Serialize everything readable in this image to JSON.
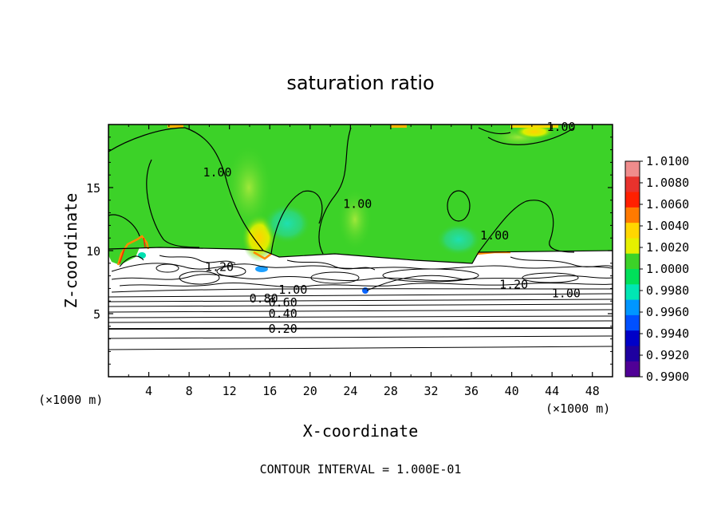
{
  "chart_data": {
    "type": "heatmap",
    "title": "saturation ratio",
    "xlabel": "X-coordinate",
    "ylabel": "Z-coordinate",
    "x_unit_label_left": "(×1000 m)",
    "x_unit_label_right": "(×1000 m)",
    "footer": "CONTOUR INTERVAL = 1.000E-01",
    "xlim": [
      0,
      50
    ],
    "ylim": [
      0,
      20
    ],
    "x_ticks": [
      4,
      8,
      12,
      16,
      20,
      24,
      28,
      32,
      36,
      40,
      44,
      48
    ],
    "x_tick_labels": [
      "4",
      "8",
      "12",
      "16",
      "20",
      "24",
      "28",
      "32",
      "36",
      "40",
      "44",
      "48"
    ],
    "y_ticks": [
      5,
      10,
      15
    ],
    "y_tick_labels": [
      "5",
      "10",
      "15"
    ],
    "colorbar": {
      "min": 0.99,
      "max": 1.01,
      "labels": [
        "1.0100",
        "1.0080",
        "1.0060",
        "1.0040",
        "1.0020",
        "1.0000",
        "0.9980",
        "0.9960",
        "0.9940",
        "0.9920",
        "0.9900"
      ],
      "colors": [
        "#f08c8c",
        "#e8322d",
        "#ff2000",
        "#ff7a00",
        "#ffd700",
        "#e6f000",
        "#3cd228",
        "#00e05a",
        "#00e6b4",
        "#0096ff",
        "#0050ff",
        "#0000c8",
        "#1e00a0",
        "#500096"
      ]
    },
    "contour_labels": [
      {
        "text": "1.00",
        "x": 10.8,
        "y": 16.2
      },
      {
        "text": "1.00",
        "x": 24.7,
        "y": 13.7
      },
      {
        "text": "1.00",
        "x": 38.3,
        "y": 11.2
      },
      {
        "text": "1.00",
        "x": 44.9,
        "y": 19.8
      },
      {
        "text": "1.20",
        "x": 11.0,
        "y": 8.7
      },
      {
        "text": "1.00",
        "x": 18.3,
        "y": 6.9
      },
      {
        "text": "1.20",
        "x": 40.2,
        "y": 7.3
      },
      {
        "text": "1.00",
        "x": 45.4,
        "y": 6.6
      },
      {
        "text": "0.80",
        "x": 15.4,
        "y": 6.2
      },
      {
        "text": "0.60",
        "x": 17.3,
        "y": 5.9
      },
      {
        "text": "0.40",
        "x": 17.3,
        "y": 5.0
      },
      {
        "text": "0.20",
        "x": 17.3,
        "y": 3.8
      }
    ]
  }
}
